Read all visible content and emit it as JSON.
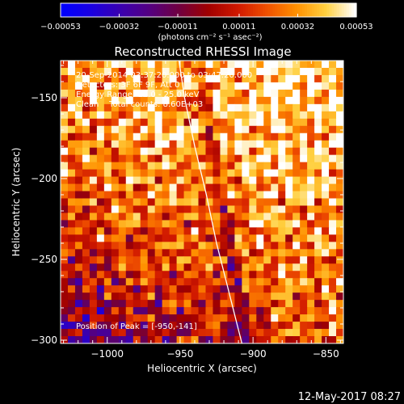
{
  "chart_data": {
    "type": "heatmap",
    "title": "Reconstructed RHESSI Image",
    "xlabel": "Heliocentric X (arcsec)",
    "ylabel": "Heliocentric Y (arcsec)",
    "xlim": [
      -1032,
      -838
    ],
    "ylim": [
      -302,
      -127
    ],
    "x_ticks": [
      -1000,
      -950,
      -900,
      -850
    ],
    "x_tick_labels": [
      "−1000",
      "−950",
      "−900",
      "−850"
    ],
    "y_ticks": [
      -150,
      -200,
      -250,
      -300
    ],
    "y_tick_labels": [
      "−150",
      "−200",
      "−250",
      "−300"
    ],
    "colorbar": {
      "range": [
        -0.00053,
        0.00053
      ],
      "ticks": [
        -0.00053,
        -0.00032,
        -0.00011,
        0.00011,
        0.00032,
        0.00053
      ],
      "tick_labels": [
        "−0.00053",
        "−0.00032",
        "−0.00011",
        "0.00011",
        "0.00032",
        "0.00053"
      ],
      "unit_label": "(photons cm⁻² s⁻¹ asec⁻²)",
      "colormap": [
        "#0000ff",
        "#1a00e0",
        "#3a00b0",
        "#550080",
        "#700040",
        "#a00000",
        "#d01800",
        "#f05000",
        "#ff9000",
        "#ffd040",
        "#ffffff"
      ]
    },
    "limb_curve": {
      "x": [
        -950.8,
        -947,
        -940,
        -932,
        -925,
        -918,
        -911,
        -907.6
      ],
      "y": [
        -127,
        -150,
        -180,
        -210,
        -240,
        -265,
        -290,
        -302
      ]
    },
    "annotations": {
      "time_range": "20-Sep-2014 03:37:20.000 to 03:47:20.000",
      "detectors": "Detectors: 3F 6F 9F, Att 0",
      "energy_range": "Energy Range: 12.0 - 25.0 keV",
      "clean_counts": "Clean    Total counts: 8.60E+03",
      "peak_position": "Position of Peak = [-950,-141]"
    },
    "grid": false,
    "legend": "none"
  },
  "footer": {
    "timestamp": "12-May-2017 08:27"
  }
}
